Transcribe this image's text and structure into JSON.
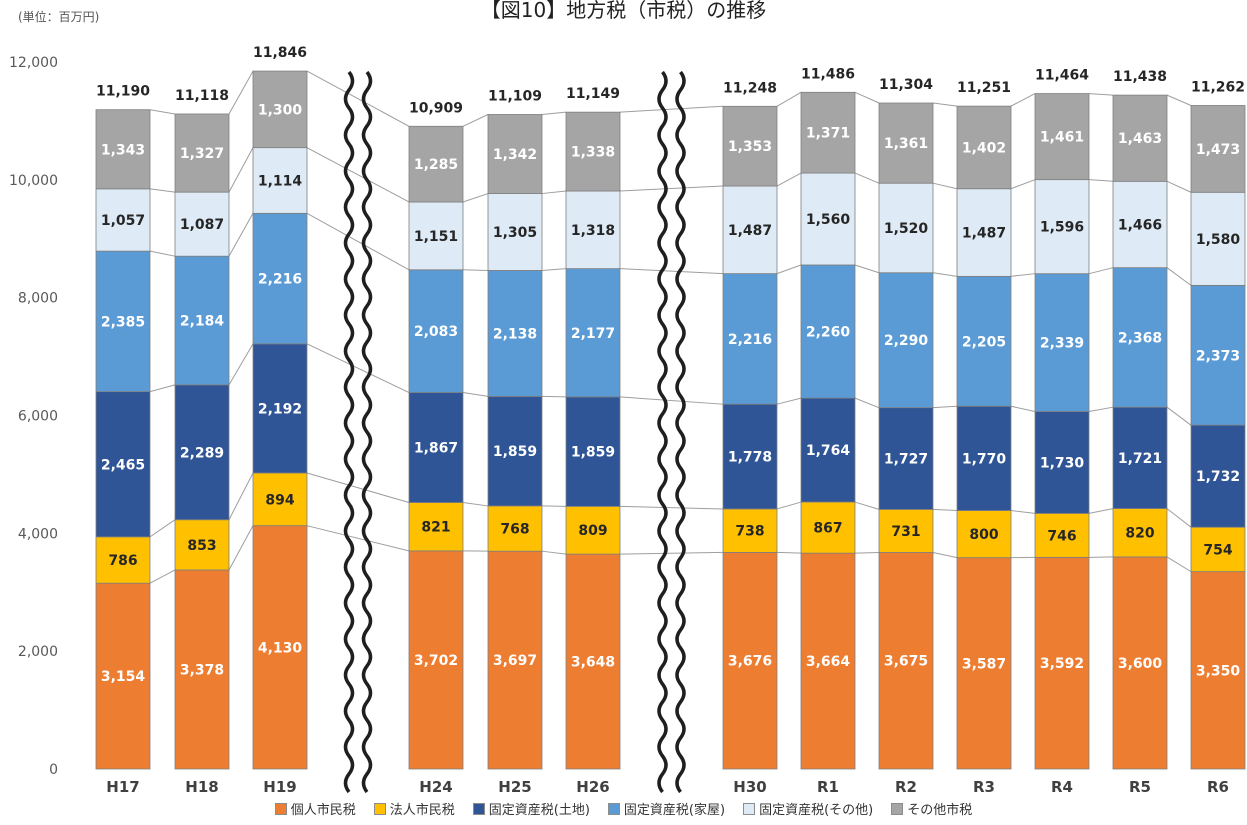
{
  "unit_note": "(単位：百万円)",
  "chart_data": {
    "type": "bar",
    "stacked": true,
    "title": "【図10】地方税（市税）の推移",
    "categories": [
      "H17",
      "H18",
      "H19",
      "H24",
      "H25",
      "H26",
      "H30",
      "R1",
      "R2",
      "R3",
      "R4",
      "R5",
      "R6"
    ],
    "axis_break_after": [
      "H19",
      "H26"
    ],
    "ylim": [
      0,
      12000
    ],
    "yticks": [
      "0",
      "2,000",
      "4,000",
      "6,000",
      "8,000",
      "10,000",
      "12,000"
    ],
    "grid": false,
    "legend_position": "bottom",
    "series": [
      {
        "name": "個人市民税",
        "color": "#ED7D31",
        "values": [
          3154,
          3378,
          4130,
          3702,
          3697,
          3648,
          3676,
          3664,
          3675,
          3587,
          3592,
          3600,
          3350
        ],
        "labels": [
          "3,154",
          "3,378",
          "4,130",
          "3,702",
          "3,697",
          "3,648",
          "3,676",
          "3,664",
          "3,675",
          "3,587",
          "3,592",
          "3,600",
          "3,350"
        ]
      },
      {
        "name": "法人市民税",
        "color": "#FFC000",
        "values": [
          786,
          853,
          894,
          821,
          768,
          809,
          738,
          867,
          731,
          800,
          746,
          820,
          754
        ],
        "labels": [
          "786",
          "853",
          "894",
          "821",
          "768",
          "809",
          "738",
          "867",
          "731",
          "800",
          "746",
          "820",
          "754"
        ]
      },
      {
        "name": "固定資産税(土地)",
        "color": "#2F5597",
        "values": [
          2465,
          2289,
          2192,
          1867,
          1859,
          1859,
          1778,
          1764,
          1727,
          1770,
          1730,
          1721,
          1732
        ],
        "labels": [
          "2,465",
          "2,289",
          "2,192",
          "1,867",
          "1,859",
          "1,859",
          "1,778",
          "1,764",
          "1,727",
          "1,770",
          "1,730",
          "1,721",
          "1,732"
        ]
      },
      {
        "name": "固定資産税(家屋)",
        "color": "#5B9BD5",
        "values": [
          2385,
          2184,
          2216,
          2083,
          2138,
          2177,
          2216,
          2260,
          2290,
          2205,
          2339,
          2368,
          2373
        ],
        "labels": [
          "2,385",
          "2,184",
          "2,216",
          "2,083",
          "2,138",
          "2,177",
          "2,216",
          "2,260",
          "2,290",
          "2,205",
          "2,339",
          "2,368",
          "2,373"
        ]
      },
      {
        "name": "固定資産税(その他)",
        "color": "#DEEBF7",
        "values": [
          1057,
          1087,
          1114,
          1151,
          1305,
          1318,
          1487,
          1560,
          1520,
          1487,
          1596,
          1466,
          1580
        ],
        "labels": [
          "1,057",
          "1,087",
          "1,114",
          "1,151",
          "1,305",
          "1,318",
          "1,487",
          "1,560",
          "1,520",
          "1,487",
          "1,596",
          "1,466",
          "1,580"
        ]
      },
      {
        "name": "その他市税",
        "color": "#A5A5A5",
        "values": [
          1343,
          1327,
          1300,
          1285,
          1342,
          1338,
          1353,
          1371,
          1361,
          1402,
          1461,
          1463,
          1473
        ],
        "labels": [
          "1,343",
          "1,327",
          "1,300",
          "1,285",
          "1,342",
          "1,338",
          "1,353",
          "1,371",
          "1,361",
          "1,402",
          "1,461",
          "1,463",
          "1,473"
        ]
      }
    ],
    "totals": [
      11190,
      11118,
      11846,
      10909,
      11109,
      11149,
      11248,
      11486,
      11304,
      11251,
      11464,
      11438,
      11262
    ],
    "total_labels": [
      "11,190",
      "11,118",
      "11,846",
      "10,909",
      "11,109",
      "11,149",
      "11,248",
      "11,486",
      "11,304",
      "11,251",
      "11,464",
      "11,438",
      "11,262"
    ]
  }
}
